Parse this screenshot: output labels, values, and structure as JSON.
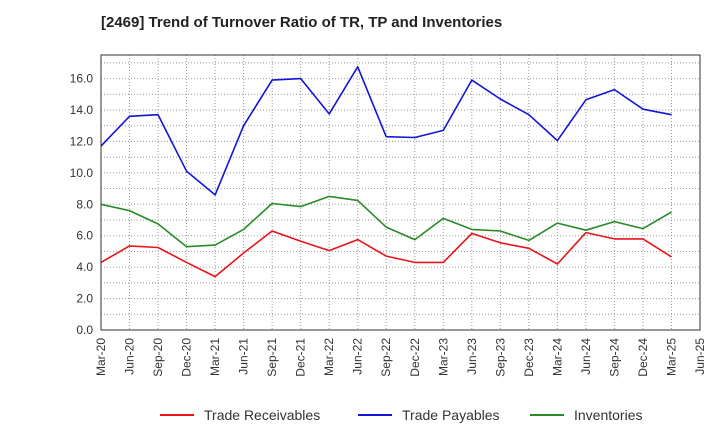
{
  "chart_data": {
    "type": "line",
    "title": "[2469]  Trend of Turnover Ratio of TR, TP and Inventories",
    "xlabel": "",
    "ylabel": "",
    "ylim": [
      0,
      17.5
    ],
    "yticks": [
      "0.0",
      "2.0",
      "4.0",
      "6.0",
      "8.0",
      "10.0",
      "12.0",
      "14.0",
      "16.0"
    ],
    "categories": [
      "Mar-20",
      "Jun-20",
      "Sep-20",
      "Dec-20",
      "Mar-21",
      "Jun-21",
      "Sep-21",
      "Dec-21",
      "Mar-22",
      "Jun-22",
      "Sep-22",
      "Dec-22",
      "Mar-23",
      "Jun-23",
      "Sep-23",
      "Dec-23",
      "Mar-24",
      "Jun-24",
      "Sep-24",
      "Dec-24",
      "Mar-25",
      "Jun-25"
    ],
    "grid": true,
    "legend_position": "bottom",
    "series": [
      {
        "name": "Trade Receivables",
        "color": "#e8141b",
        "values": [
          4.3,
          5.35,
          5.25,
          4.3,
          3.4,
          4.9,
          6.3,
          5.65,
          5.05,
          5.75,
          4.7,
          4.3,
          4.3,
          6.15,
          5.55,
          5.2,
          4.2,
          6.2,
          5.8,
          5.8,
          4.65,
          null
        ]
      },
      {
        "name": "Trade Payables",
        "color": "#1515d8",
        "values": [
          11.7,
          13.6,
          13.7,
          10.1,
          8.6,
          13.0,
          15.9,
          16.0,
          13.75,
          16.75,
          12.3,
          12.25,
          12.7,
          15.9,
          14.7,
          13.7,
          12.05,
          14.65,
          15.3,
          14.05,
          13.7,
          null
        ]
      },
      {
        "name": "Inventories",
        "color": "#2a8a2a",
        "values": [
          8.0,
          7.6,
          6.75,
          5.3,
          5.4,
          6.4,
          8.05,
          7.85,
          8.5,
          8.25,
          6.55,
          5.75,
          7.1,
          6.4,
          6.3,
          5.7,
          6.8,
          6.35,
          6.9,
          6.45,
          7.5,
          null
        ]
      }
    ]
  }
}
